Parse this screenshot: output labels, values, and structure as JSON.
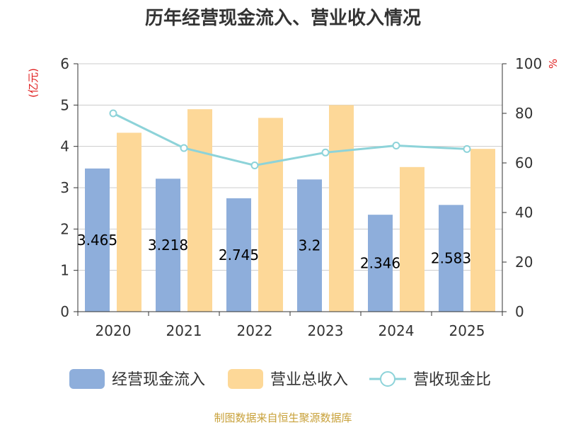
{
  "chart_data": {
    "type": "bar",
    "title": "历年经营现金流入、营业收入情况",
    "categories": [
      "2020",
      "2021",
      "2022",
      "2023",
      "2024",
      "2025"
    ],
    "series": [
      {
        "name": "经营现金流入",
        "axis": "left",
        "kind": "bar",
        "color": "#8eaedb",
        "values": [
          3.465,
          3.218,
          2.745,
          3.2,
          2.346,
          2.583
        ],
        "labels": [
          "3.465",
          "3.218",
          "2.745",
          "3.2",
          "2.346",
          "2.583"
        ]
      },
      {
        "name": "营业总收入",
        "axis": "left",
        "kind": "bar",
        "color": "#fdd898",
        "values": [
          4.33,
          4.9,
          4.69,
          5.0,
          3.5,
          3.94
        ]
      },
      {
        "name": "营收现金比",
        "axis": "right",
        "kind": "line",
        "color": "#8dd3d9",
        "values": [
          80.0,
          66.0,
          59.0,
          64.2,
          67.0,
          65.6
        ]
      }
    ],
    "yleft": {
      "label": "(亿元)",
      "lim": [
        0,
        6
      ],
      "ticks": [
        "0",
        "1",
        "2",
        "3",
        "4",
        "5",
        "6"
      ]
    },
    "yright": {
      "label": "%",
      "lim": [
        0,
        100
      ],
      "ticks": [
        "0",
        "20",
        "40",
        "60",
        "80",
        "100"
      ]
    },
    "grid": true,
    "legend": "bottom",
    "source": "制图数据来自恒生聚源数据库"
  }
}
